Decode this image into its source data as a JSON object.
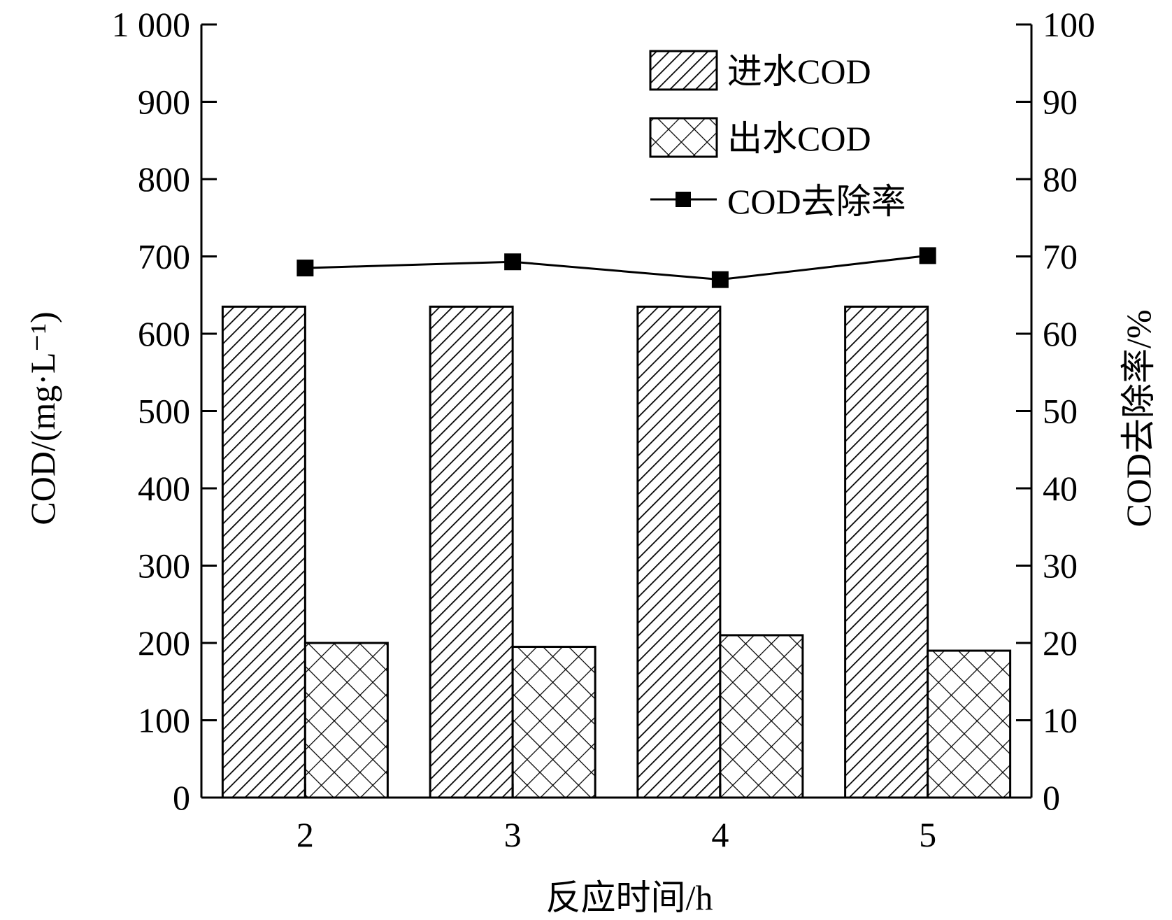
{
  "chart_data": {
    "type": "bar",
    "categories": [
      "2",
      "3",
      "4",
      "5"
    ],
    "xlabel": "反应时间/h",
    "ylabel_left": "COD/(mg·L⁻¹)",
    "ylabel_right": "COD去除率/%",
    "ylim_left": [
      0,
      1000
    ],
    "ylim_right": [
      0,
      100
    ],
    "yticks_left": [
      "0",
      "100",
      "200",
      "300",
      "400",
      "500",
      "600",
      "700",
      "800",
      "900",
      "1 000"
    ],
    "yticks_right": [
      "0",
      "10",
      "20",
      "30",
      "40",
      "50",
      "60",
      "70",
      "80",
      "90",
      "100"
    ],
    "series": [
      {
        "name": "进水COD",
        "type": "bar",
        "axis": "left",
        "pattern": "diagonal-hatch",
        "values": [
          635,
          635,
          635,
          635
        ]
      },
      {
        "name": "出水COD",
        "type": "bar",
        "axis": "left",
        "pattern": "cross-hatch",
        "values": [
          200,
          195,
          210,
          190
        ]
      },
      {
        "name": "COD去除率",
        "type": "line",
        "axis": "right",
        "marker": "square",
        "values": [
          68.5,
          69.3,
          67.0,
          70.1
        ]
      }
    ],
    "legend_position": "top-right",
    "grid": false,
    "colors": {
      "ink": "#000000",
      "bar_fill": "#ffffff"
    }
  }
}
